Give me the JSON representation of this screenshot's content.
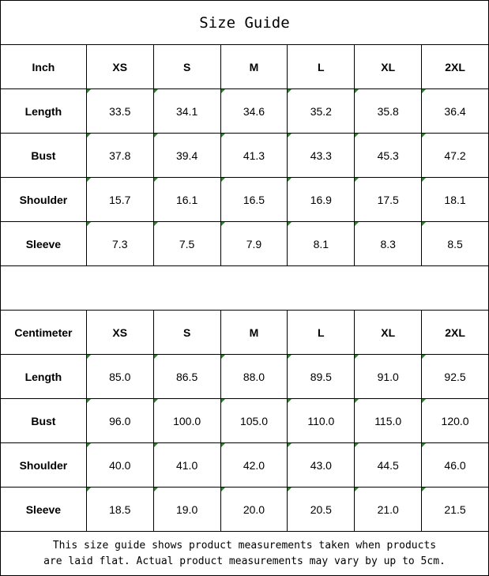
{
  "title": "Size Guide",
  "tables": [
    {
      "unit": "Inch",
      "sizes": [
        "XS",
        "S",
        "M",
        "L",
        "XL",
        "2XL"
      ],
      "rows": [
        {
          "label": "Length",
          "values": [
            "33.5",
            "34.1",
            "34.6",
            "35.2",
            "35.8",
            "36.4"
          ]
        },
        {
          "label": "Bust",
          "values": [
            "37.8",
            "39.4",
            "41.3",
            "43.3",
            "45.3",
            "47.2"
          ]
        },
        {
          "label": "Shoulder",
          "values": [
            "15.7",
            "16.1",
            "16.5",
            "16.9",
            "17.5",
            "18.1"
          ]
        },
        {
          "label": "Sleeve",
          "values": [
            "7.3",
            "7.5",
            "7.9",
            "8.1",
            "8.3",
            "8.5"
          ]
        }
      ]
    },
    {
      "unit": "Centimeter",
      "sizes": [
        "XS",
        "S",
        "M",
        "L",
        "XL",
        "2XL"
      ],
      "rows": [
        {
          "label": "Length",
          "values": [
            "85.0",
            "86.5",
            "88.0",
            "89.5",
            "91.0",
            "92.5"
          ]
        },
        {
          "label": "Bust",
          "values": [
            "96.0",
            "100.0",
            "105.0",
            "110.0",
            "115.0",
            "120.0"
          ]
        },
        {
          "label": "Shoulder",
          "values": [
            "40.0",
            "41.0",
            "42.0",
            "43.0",
            "44.5",
            "46.0"
          ]
        },
        {
          "label": "Sleeve",
          "values": [
            "18.5",
            "19.0",
            "20.0",
            "20.5",
            "21.0",
            "21.5"
          ]
        }
      ]
    }
  ],
  "note": {
    "line1": "This size guide shows product measurements taken when products",
    "line2": "are laid flat. Actual product measurements may vary by up to 5cm."
  },
  "colors": {
    "indicator": "#1f8a1f"
  }
}
